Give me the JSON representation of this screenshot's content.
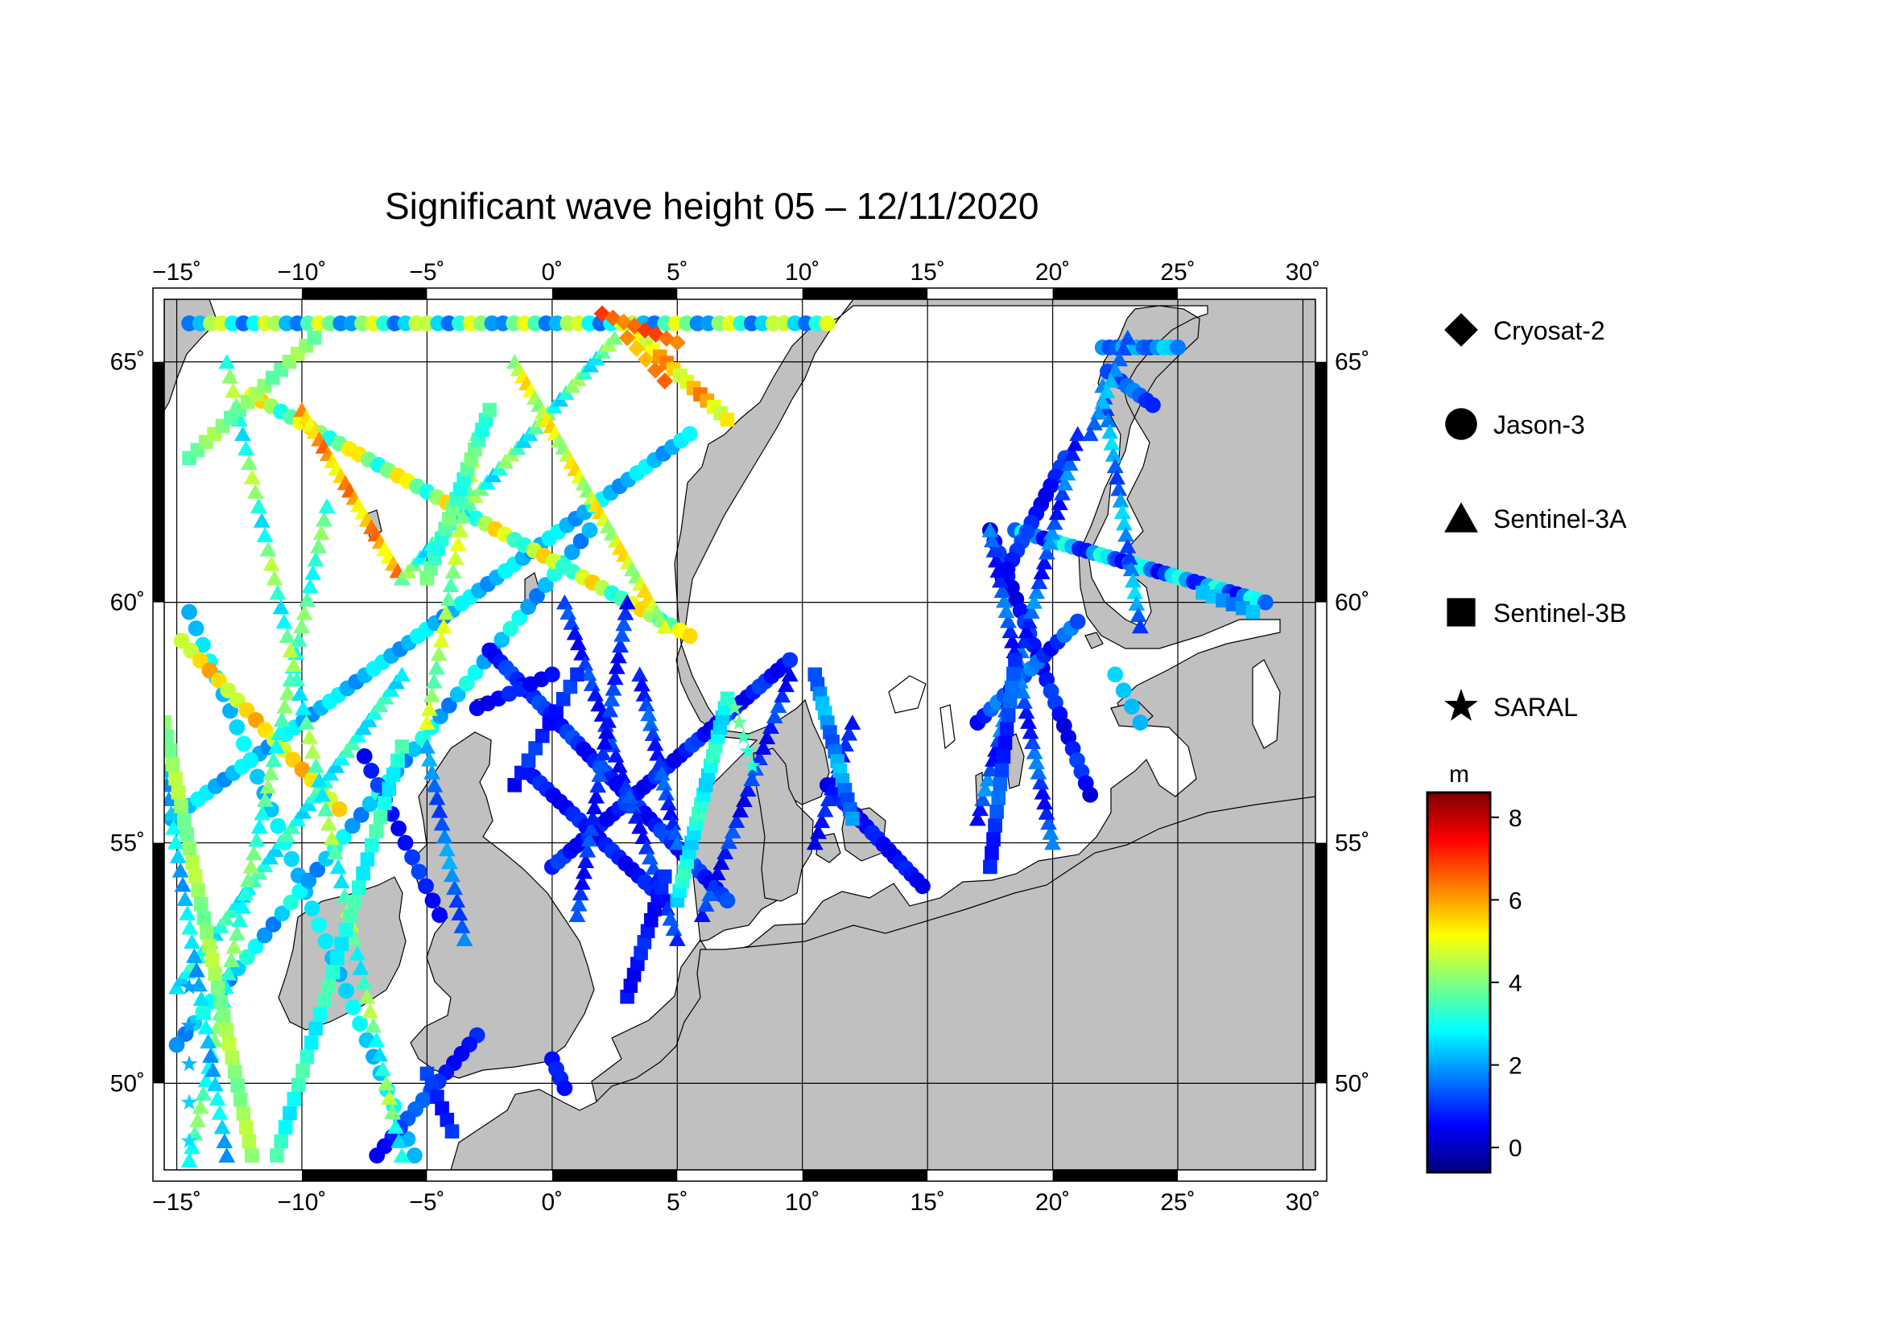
{
  "title": "Significant wave height 05 – 12/11/2020",
  "map": {
    "lon_range": [
      -15.5,
      30.5
    ],
    "lat_range": [
      48.2,
      66.3
    ],
    "lon_ticks": [
      {
        "value": -15,
        "label": "−15˚"
      },
      {
        "value": -10,
        "label": "−10˚"
      },
      {
        "value": -5,
        "label": "−5˚"
      },
      {
        "value": 0,
        "label": "0˚"
      },
      {
        "value": 5,
        "label": "5˚"
      },
      {
        "value": 10,
        "label": "10˚"
      },
      {
        "value": 15,
        "label": "15˚"
      },
      {
        "value": 20,
        "label": "20˚"
      },
      {
        "value": 25,
        "label": "25˚"
      },
      {
        "value": 30,
        "label": "30˚"
      }
    ],
    "lat_ticks": [
      {
        "value": 50,
        "label": "50˚"
      },
      {
        "value": 55,
        "label": "55˚"
      },
      {
        "value": 60,
        "label": "60˚"
      },
      {
        "value": 65,
        "label": "65˚"
      }
    ],
    "land_color": "#c0c0c0",
    "sea_color": "#ffffff",
    "grid": true
  },
  "legend": {
    "items": [
      {
        "symbol": "diamond",
        "label": "Cryosat-2"
      },
      {
        "symbol": "circle",
        "label": "Jason-3"
      },
      {
        "symbol": "triangle",
        "label": "Sentinel-3A"
      },
      {
        "symbol": "square",
        "label": "Sentinel-3B"
      },
      {
        "symbol": "star",
        "label": "SARAL"
      }
    ]
  },
  "colorbar": {
    "unit": "m",
    "range": [
      -0.6,
      8.6
    ],
    "ticks": [
      {
        "value": 0,
        "label": "0"
      },
      {
        "value": 2,
        "label": "2"
      },
      {
        "value": 4,
        "label": "4"
      },
      {
        "value": 6,
        "label": "6"
      },
      {
        "value": 8,
        "label": "8"
      }
    ],
    "colors": [
      "#00007f",
      "#0000ff",
      "#007fff",
      "#00ffff",
      "#7fff7f",
      "#ffff00",
      "#ff7f00",
      "#ff0000",
      "#7f0000"
    ]
  },
  "chart_data": {
    "type": "scatter",
    "title": "Significant wave height 05 – 12/11/2020",
    "xlabel": "",
    "ylabel": "",
    "xlim": [
      -15.5,
      30.5
    ],
    "ylim": [
      48.2,
      66.3
    ],
    "colorbar_unit": "m",
    "series": [
      {
        "name": "Jason-3",
        "symbol": "circle",
        "tracks": [
          {
            "start": [
              -15.2,
              55.5
            ],
            "end": [
              5.5,
              63.5
            ],
            "n": 60,
            "swh": [
              1.8,
              2.9
            ]
          },
          {
            "start": [
              -14.5,
              59.8
            ],
            "end": [
              -5.5,
              48.5
            ],
            "n": 34,
            "swh": [
              2.1,
              2.9
            ]
          },
          {
            "start": [
              -15.0,
              50.8
            ],
            "end": [
              1.5,
              61.5
            ],
            "n": 48,
            "swh": [
              1.6,
              3.2
            ]
          },
          {
            "start": [
              -12.0,
              64.3
            ],
            "end": [
              5.5,
              59.3
            ],
            "n": 46,
            "swh": [
              3.0,
              5.6
            ]
          },
          {
            "start": [
              -14.8,
              59.2
            ],
            "end": [
              -8.5,
              55.7
            ],
            "n": 18,
            "swh": [
              4.5,
              6.0
            ]
          },
          {
            "start": [
              -2.5,
              59.0
            ],
            "end": [
              7.0,
              53.8
            ],
            "n": 44,
            "swh": [
              0.4,
              1.3
            ]
          },
          {
            "start": [
              -7.5,
              56.8
            ],
            "end": [
              -4.5,
              53.5
            ],
            "n": 12,
            "swh": [
              0.4,
              1.2
            ]
          },
          {
            "start": [
              -14.5,
              65.8
            ],
            "end": [
              11.0,
              65.8
            ],
            "n": 60,
            "swh": [
              1.5,
              5.0
            ]
          },
          {
            "start": [
              0.0,
              54.5
            ],
            "end": [
              9.5,
              58.8
            ],
            "n": 40,
            "swh": [
              0.3,
              1.2
            ]
          },
          {
            "start": [
              -3.0,
              57.8
            ],
            "end": [
              0.0,
              58.5
            ],
            "n": 8,
            "swh": [
              0.3,
              1.0
            ]
          },
          {
            "start": [
              -1.0,
              56.5
            ],
            "end": [
              4.5,
              53.8
            ],
            "n": 22,
            "swh": [
              0.3,
              1.0
            ]
          },
          {
            "start": [
              17.5,
              61.5
            ],
            "end": [
              21.5,
              56.0
            ],
            "n": 24,
            "swh": [
              0.2,
              1.2
            ]
          },
          {
            "start": [
              17.0,
              57.5
            ],
            "end": [
              21.0,
              59.6
            ],
            "n": 16,
            "swh": [
              0.5,
              1.8
            ]
          },
          {
            "start": [
              18.5,
              61.5
            ],
            "end": [
              28.5,
              60.0
            ],
            "n": 36,
            "swh": [
              0.5,
              3.2
            ]
          },
          {
            "start": [
              22.0,
              65.3
            ],
            "end": [
              25.0,
              65.3
            ],
            "n": 12,
            "swh": [
              1.2,
              2.6
            ]
          },
          {
            "start": [
              22.2,
              64.8
            ],
            "end": [
              24.0,
              64.1
            ],
            "n": 8,
            "swh": [
              0.8,
              1.8
            ]
          },
          {
            "start": [
              20.5,
              63.0
            ],
            "end": [
              18.0,
              60.5
            ],
            "n": 14,
            "swh": [
              0.4,
              1.2
            ]
          },
          {
            "start": [
              11.0,
              56.2
            ],
            "end": [
              14.8,
              54.1
            ],
            "n": 18,
            "swh": [
              0.3,
              0.9
            ]
          },
          {
            "start": [
              -3.0,
              51.0
            ],
            "end": [
              -7.0,
              48.5
            ],
            "n": 14,
            "swh": [
              0.5,
              1.5
            ]
          },
          {
            "start": [
              0.0,
              50.5
            ],
            "end": [
              0.5,
              49.9
            ],
            "n": 4,
            "swh": [
              0.4,
              0.9
            ]
          },
          {
            "start": [
              23.5,
              57.5
            ],
            "end": [
              22.5,
              58.5
            ],
            "n": 4,
            "swh": [
              2.2,
              2.8
            ]
          }
        ]
      },
      {
        "name": "Sentinel-3A",
        "symbol": "triangle",
        "tracks": [
          {
            "start": [
              -15.0,
              52.0
            ],
            "end": [
              -6.0,
              58.5
            ],
            "n": 42,
            "swh": [
              2.4,
              3.6
            ]
          },
          {
            "start": [
              -14.5,
              48.4
            ],
            "end": [
              -9.0,
              62.0
            ],
            "n": 50,
            "swh": [
              2.8,
              4.2
            ]
          },
          {
            "start": [
              -13.0,
              65.0
            ],
            "end": [
              -6.0,
              48.5
            ],
            "n": 56,
            "swh": [
              2.5,
              4.6
            ]
          },
          {
            "start": [
              -10.0,
              64.0
            ],
            "end": [
              -6.0,
              60.5
            ],
            "n": 24,
            "swh": [
              5.0,
              6.6
            ]
          },
          {
            "start": [
              -6.0,
              60.5
            ],
            "end": [
              2.5,
              65.5
            ],
            "n": 36,
            "swh": [
              2.4,
              4.4
            ]
          },
          {
            "start": [
              -1.5,
              65.0
            ],
            "end": [
              4.5,
              59.5
            ],
            "n": 38,
            "swh": [
              4.0,
              5.6
            ]
          },
          {
            "start": [
              -5.0,
              57.5
            ],
            "end": [
              -3.0,
              63.5
            ],
            "n": 22,
            "swh": [
              3.5,
              5.0
            ]
          },
          {
            "start": [
              0.5,
              60.0
            ],
            "end": [
              5.0,
              53.0
            ],
            "n": 34,
            "swh": [
              0.4,
              1.4
            ]
          },
          {
            "start": [
              1.0,
              53.5
            ],
            "end": [
              3.0,
              60.0
            ],
            "n": 30,
            "swh": [
              0.4,
              1.4
            ]
          },
          {
            "start": [
              3.5,
              58.5
            ],
            "end": [
              5.0,
              55.0
            ],
            "n": 18,
            "swh": [
              0.6,
              1.6
            ]
          },
          {
            "start": [
              6.0,
              53.5
            ],
            "end": [
              9.5,
              58.5
            ],
            "n": 24,
            "swh": [
              0.3,
              1.4
            ]
          },
          {
            "start": [
              -3.5,
              53.0
            ],
            "end": [
              -5.0,
              57.0
            ],
            "n": 16,
            "swh": [
              1.0,
              2.2
            ]
          },
          {
            "start": [
              10.5,
              55.0
            ],
            "end": [
              12.0,
              57.5
            ],
            "n": 12,
            "swh": [
              0.3,
              1.0
            ]
          },
          {
            "start": [
              17.0,
              55.5
            ],
            "end": [
              21.0,
              63.5
            ],
            "n": 40,
            "swh": [
              0.5,
              2.0
            ]
          },
          {
            "start": [
              20.0,
              55.0
            ],
            "end": [
              17.5,
              61.5
            ],
            "n": 32,
            "swh": [
              0.5,
              1.8
            ]
          },
          {
            "start": [
              22.0,
              64.5
            ],
            "end": [
              23.5,
              59.5
            ],
            "n": 22,
            "swh": [
              1.0,
              2.6
            ]
          },
          {
            "start": [
              23.0,
              65.5
            ],
            "end": [
              21.5,
              63.5
            ],
            "n": 10,
            "swh": [
              1.2,
              2.4
            ]
          },
          {
            "start": [
              -15.5,
              56.5
            ],
            "end": [
              -13.0,
              48.5
            ],
            "n": 28,
            "swh": [
              1.8,
              3.0
            ]
          }
        ]
      },
      {
        "name": "Sentinel-3B",
        "symbol": "square",
        "tracks": [
          {
            "start": [
              -15.5,
              57.5
            ],
            "end": [
              -12.0,
              48.5
            ],
            "n": 32,
            "swh": [
              3.8,
              4.6
            ]
          },
          {
            "start": [
              -11.0,
              48.5
            ],
            "end": [
              -6.0,
              57.0
            ],
            "n": 30,
            "swh": [
              2.6,
              3.6
            ]
          },
          {
            "start": [
              -14.5,
              63.0
            ],
            "end": [
              -9.5,
              65.5
            ],
            "n": 16,
            "swh": [
              3.6,
              4.4
            ]
          },
          {
            "start": [
              -5.0,
              60.5
            ],
            "end": [
              -2.5,
              64.0
            ],
            "n": 18,
            "swh": [
              3.0,
              4.0
            ]
          },
          {
            "start": [
              3.5,
              65.5
            ],
            "end": [
              7.0,
              63.8
            ],
            "n": 14,
            "swh": [
              4.6,
              6.4
            ]
          },
          {
            "start": [
              5.0,
              53.8
            ],
            "end": [
              7.0,
              58.0
            ],
            "n": 22,
            "swh": [
              2.4,
              3.4
            ]
          },
          {
            "start": [
              -1.5,
              56.2
            ],
            "end": [
              1.0,
              58.5
            ],
            "n": 10,
            "swh": [
              0.5,
              1.2
            ]
          },
          {
            "start": [
              3.0,
              51.8
            ],
            "end": [
              4.5,
              54.3
            ],
            "n": 12,
            "swh": [
              0.4,
              1.0
            ]
          },
          {
            "start": [
              10.5,
              58.5
            ],
            "end": [
              12.0,
              55.5
            ],
            "n": 16,
            "swh": [
              1.2,
              2.4
            ]
          },
          {
            "start": [
              18.5,
              58.8
            ],
            "end": [
              17.5,
              54.5
            ],
            "n": 16,
            "swh": [
              0.6,
              1.6
            ]
          },
          {
            "start": [
              26.0,
              60.2
            ],
            "end": [
              28.0,
              59.8
            ],
            "n": 6,
            "swh": [
              1.6,
              2.4
            ]
          },
          {
            "start": [
              -5.0,
              50.2
            ],
            "end": [
              -4.0,
              49.0
            ],
            "n": 6,
            "swh": [
              0.6,
              1.2
            ]
          }
        ]
      },
      {
        "name": "Cryosat-2",
        "symbol": "diamond",
        "tracks": [
          {
            "start": [
              2.0,
              66.0
            ],
            "end": [
              5.0,
              65.4
            ],
            "n": 8,
            "swh": [
              6.2,
              7.0
            ]
          },
          {
            "start": [
              3.0,
              65.5
            ],
            "end": [
              4.5,
              64.6
            ],
            "n": 5,
            "swh": [
              5.6,
              6.6
            ]
          }
        ]
      },
      {
        "name": "SARAL",
        "symbol": "star",
        "tracks": [
          {
            "start": [
              7.3,
              57.8
            ],
            "end": [
              8.0,
              56.6
            ],
            "n": 5,
            "swh": [
              3.2,
              3.8
            ]
          },
          {
            "start": [
              -14.5,
              52.0
            ],
            "end": [
              -14.5,
              48.8
            ],
            "n": 5,
            "swh": [
              2.0,
              2.6
            ]
          }
        ]
      }
    ]
  }
}
